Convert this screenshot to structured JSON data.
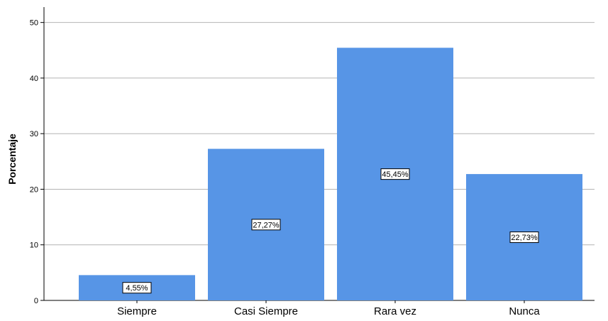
{
  "chart_data": {
    "type": "bar",
    "title": "",
    "xlabel": "",
    "ylabel": "Porcentaje",
    "ylim": [
      0,
      52
    ],
    "yticks": [
      0,
      10,
      20,
      30,
      40,
      50
    ],
    "categories": [
      "Siempre",
      "Casi Siempre",
      "Rara vez",
      "Nunca"
    ],
    "values": [
      4.55,
      27.27,
      45.45,
      22.73
    ],
    "data_labels": [
      "4,55%",
      "27,27%",
      "45,45%",
      "22,73%"
    ],
    "bar_color": "#5795e6",
    "grid": "horizontal",
    "legend": "none"
  }
}
